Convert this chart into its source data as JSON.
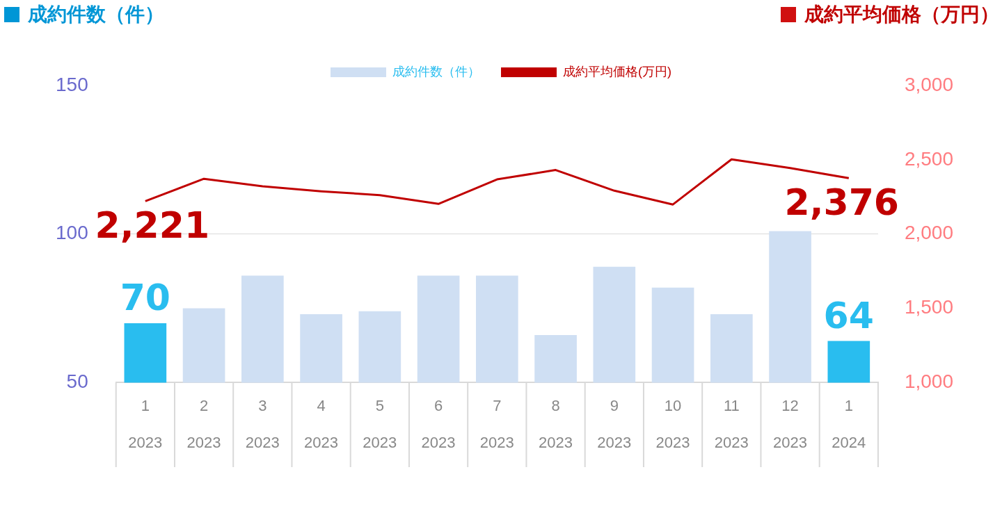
{
  "chart_data": {
    "type": "bar",
    "ylabel": "成約件数（件）",
    "y2label": "成約平均価格（万円）",
    "categories": [
      "1\n2023",
      "2\n2023",
      "3\n2023",
      "4\n2023",
      "5\n2023",
      "6\n2023",
      "7\n2023",
      "8\n2023",
      "9\n2023",
      "10\n2023",
      "11\n2023",
      "12\n2023",
      "1\n2024"
    ],
    "series": [
      {
        "name": "成約件数（件）",
        "colors": [
          "#29bdef",
          "#cfdff3",
          "#cfdff3",
          "#cfdff3",
          "#cfdff3",
          "#cfdff3",
          "#cfdff3",
          "#cfdff3",
          "#cfdff3",
          "#cfdff3",
          "#cfdff3",
          "#cfdff3",
          "#29bdef"
        ],
        "values": [
          70,
          75,
          86,
          73,
          74,
          86,
          86,
          66,
          89,
          82,
          73,
          101,
          64
        ],
        "value_labels": [
          "70",
          null,
          null,
          null,
          null,
          null,
          null,
          null,
          null,
          null,
          null,
          null,
          "64"
        ]
      },
      {
        "name": "成約平均価格(万円)",
        "type": "line",
        "axis": "y2",
        "color": "#c00000",
        "values": [
          2221,
          2372,
          2321,
          2288,
          2262,
          2203,
          2368,
          2431,
          2292,
          2199,
          2503,
          2444,
          2376
        ],
        "value_labels": [
          "2,221",
          null,
          null,
          null,
          null,
          null,
          null,
          null,
          null,
          null,
          null,
          null,
          "2,376"
        ]
      }
    ],
    "ylim": [
      50,
      150
    ],
    "yticks": [
      50,
      100,
      150
    ],
    "y2lim": [
      1000,
      3000
    ],
    "y2ticks": [
      {
        "value": 1000,
        "label": "1,000"
      },
      {
        "value": 1500,
        "label": "1,500"
      },
      {
        "value": 2000,
        "label": "2,000"
      },
      {
        "value": 2500,
        "label": "2,500"
      },
      {
        "value": 3000,
        "label": "3,000"
      }
    ],
    "grid": "y",
    "legend": "top",
    "marker": "none",
    "line_style": "solid"
  }
}
